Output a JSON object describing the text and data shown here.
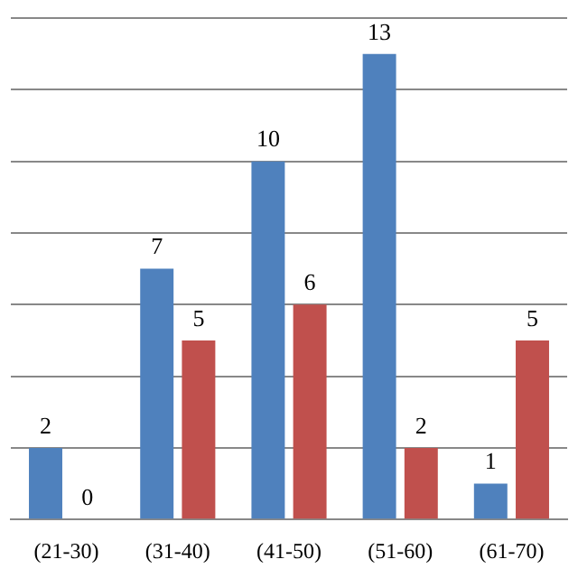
{
  "chart_data": {
    "type": "bar",
    "categories": [
      "(21-30)",
      "(31-40)",
      "(41-50)",
      "(51-60)",
      "(61-70)"
    ],
    "series": [
      {
        "color": "#4f81bd",
        "values": [
          2,
          7,
          10,
          13,
          1
        ]
      },
      {
        "color": "#c0504d",
        "values": [
          0,
          5,
          6,
          2,
          5
        ]
      }
    ],
    "ylim": [
      0,
      14
    ],
    "yticks": [
      0,
      2,
      4,
      6,
      8,
      10,
      12,
      14
    ],
    "grid": "y",
    "tick_labels": "x",
    "data_labels": true,
    "legend": false
  }
}
